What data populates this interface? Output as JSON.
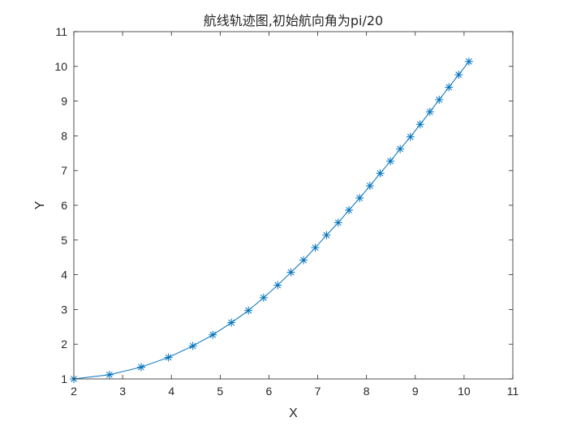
{
  "chart_data": {
    "type": "line",
    "title": "航线轨迹图,初始航向角为pi/20",
    "xlabel": "X",
    "ylabel": "Y",
    "xlim": [
      2,
      11
    ],
    "ylim": [
      1,
      11
    ],
    "xticks": [
      "2",
      "3",
      "4",
      "5",
      "6",
      "7",
      "8",
      "9",
      "10",
      "11"
    ],
    "yticks": [
      "1",
      "2",
      "3",
      "4",
      "5",
      "6",
      "7",
      "8",
      "9",
      "10",
      "11"
    ],
    "grid": false,
    "box": true,
    "marker": "asterisk",
    "line_color": "#0072BD",
    "series": [
      {
        "x": [
          2.0,
          2.73,
          3.38,
          3.94,
          4.44,
          4.85,
          5.23,
          5.58,
          5.89,
          6.18,
          6.45,
          6.71,
          6.95,
          7.18,
          7.42,
          7.64,
          7.86,
          8.07,
          8.28,
          8.49,
          8.69,
          8.9,
          9.1,
          9.3,
          9.49,
          9.69,
          9.89,
          10.1
        ],
        "y": [
          1.0,
          1.12,
          1.34,
          1.62,
          1.95,
          2.27,
          2.62,
          2.97,
          3.34,
          3.7,
          4.07,
          4.42,
          4.78,
          5.14,
          5.5,
          5.86,
          6.21,
          6.56,
          6.92,
          7.27,
          7.62,
          7.97,
          8.33,
          8.69,
          9.04,
          9.4,
          9.76,
          10.14
        ]
      }
    ]
  }
}
